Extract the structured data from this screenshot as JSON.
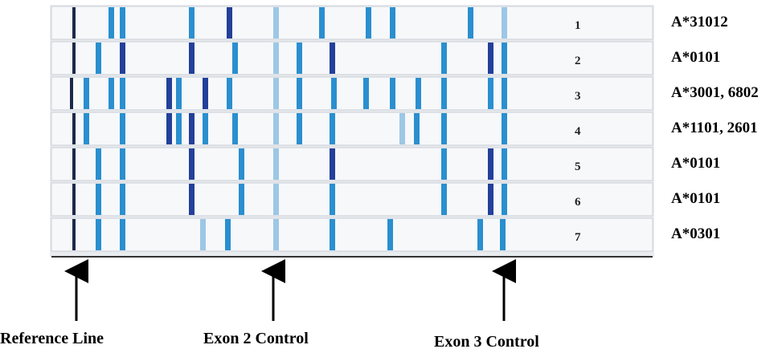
{
  "strips": [
    {
      "number": "1",
      "allele": "A*31012"
    },
    {
      "number": "2",
      "allele": "A*0101"
    },
    {
      "number": "3",
      "allele": "A*3001, 6802"
    },
    {
      "number": "4",
      "allele": "A*1101, 2601"
    },
    {
      "number": "5",
      "allele": "A*0101"
    },
    {
      "number": "6",
      "allele": "A*0101"
    },
    {
      "number": "7",
      "allele": "A*0301"
    }
  ],
  "markers": [
    "Reference Line",
    "Exon 2 Control",
    "Exon 3 Control"
  ]
}
